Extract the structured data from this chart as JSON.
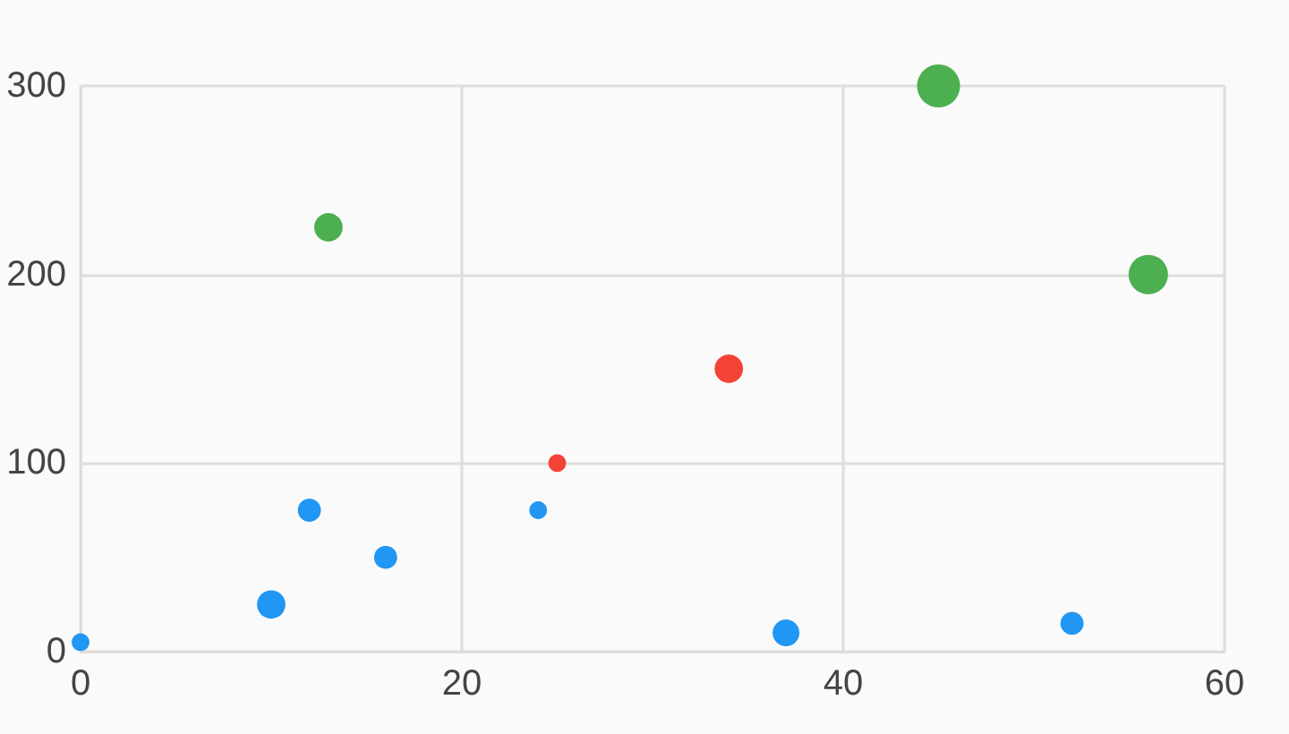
{
  "chart_data": {
    "type": "bubble",
    "xlim": [
      0,
      60
    ],
    "xticks": [
      0,
      20,
      40,
      60
    ],
    "ylim": [
      0,
      300
    ],
    "yticks": [
      0,
      100,
      200,
      300
    ],
    "grid": true,
    "series": [
      {
        "color": "#2196f3",
        "x": [
          0,
          10,
          12,
          16,
          24,
          37,
          52
        ],
        "values": [
          5,
          25,
          75,
          50,
          75,
          10,
          15
        ],
        "sizes": [
          0.17,
          0.44,
          0.29,
          0.29,
          0.17,
          0.39,
          0.29
        ]
      },
      {
        "color": "#f44336",
        "x": [
          25,
          34
        ],
        "values": [
          100,
          150
        ],
        "sizes": [
          0.17,
          0.44
        ]
      },
      {
        "color": "#4caf50",
        "x": [
          13,
          45,
          56
        ],
        "values": [
          225,
          300,
          200
        ],
        "sizes": [
          0.44,
          1,
          0.84
        ]
      }
    ]
  }
}
